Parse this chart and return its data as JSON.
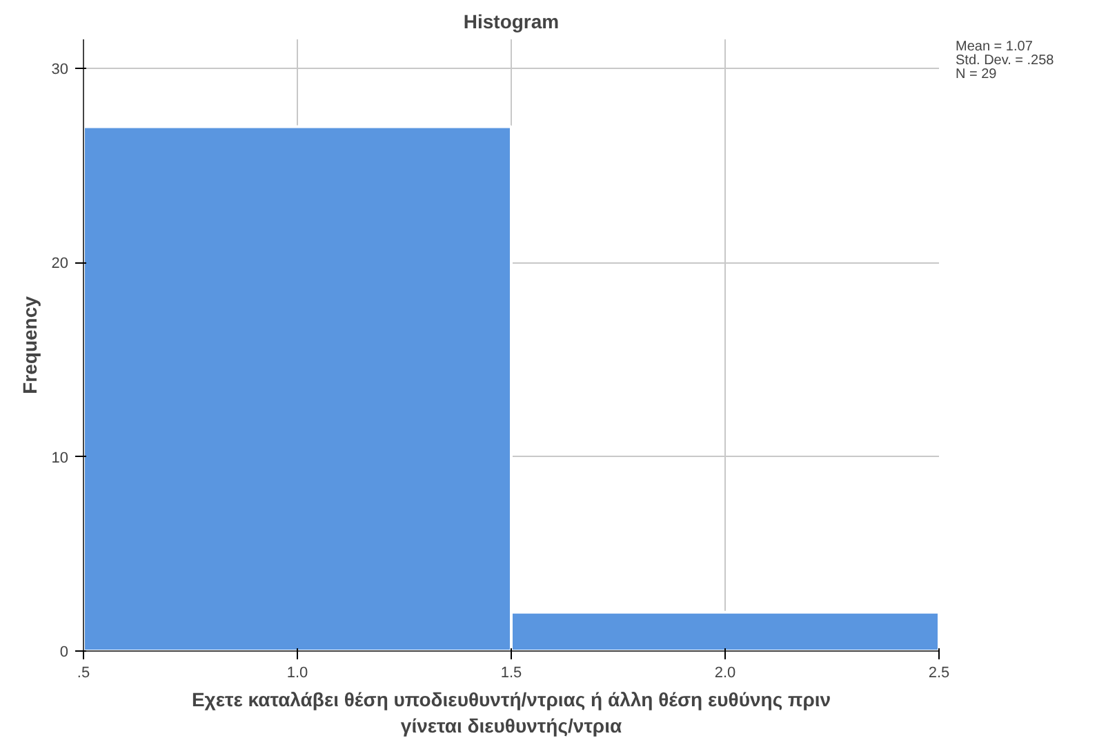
{
  "chart_data": {
    "type": "histogram",
    "title": "Histogram",
    "xlabel": "Εχετε καταλάβει θέση υποδιευθυντή/ντριας ή άλλη θέση ευθύνης πριν γίνεται διευθυντής/ντρια",
    "ylabel": "Frequency",
    "bins": [
      0.5,
      1.5,
      2.5
    ],
    "values": [
      27,
      2
    ],
    "color": "#5a96e0",
    "xlim": [
      0.5,
      2.5
    ],
    "xticks": [
      {
        "value": 0.5,
        "label": ".5"
      },
      {
        "value": 1.0,
        "label": "1.0"
      },
      {
        "value": 1.5,
        "label": "1.5"
      },
      {
        "value": 2.0,
        "label": "2.0"
      },
      {
        "value": 2.5,
        "label": "2.5"
      }
    ],
    "ylim": [
      0,
      31.5
    ],
    "yticks": [
      0,
      10,
      20,
      30
    ],
    "grid": true,
    "annotations": [
      "Mean = 1.07",
      "Std. Dev. = .258",
      "N = 29"
    ]
  }
}
